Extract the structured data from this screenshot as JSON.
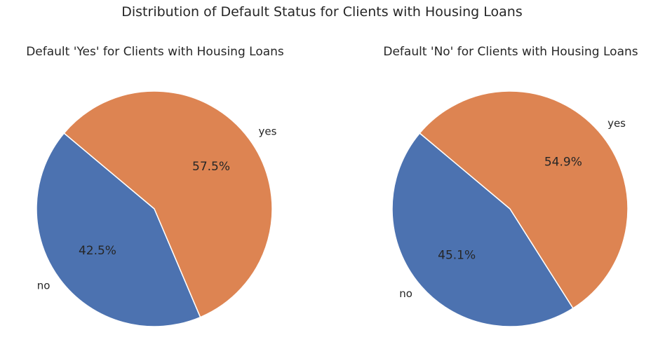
{
  "figure_title": "Distribution of Default Status for Clients with Housing Loans",
  "colors": {
    "no": "#4c72b0",
    "yes": "#dd8452",
    "edge": "#ffffff",
    "text": "#262626"
  },
  "chart_data": [
    {
      "type": "pie",
      "title": "Default 'Yes' for Clients with Housing Loans",
      "labels": [
        "no",
        "yes"
      ],
      "values": [
        42.5,
        57.5
      ],
      "pct_labels": [
        "42.5%",
        "57.5%"
      ],
      "colors": [
        "#4c72b0",
        "#dd8452"
      ],
      "start_angle_deg": 140,
      "legend": "none"
    },
    {
      "type": "pie",
      "title": "Default 'No' for Clients with Housing Loans",
      "labels": [
        "no",
        "yes"
      ],
      "values": [
        45.1,
        54.9
      ],
      "pct_labels": [
        "45.1%",
        "54.9%"
      ],
      "colors": [
        "#4c72b0",
        "#dd8452"
      ],
      "start_angle_deg": 140,
      "legend": "none"
    }
  ]
}
